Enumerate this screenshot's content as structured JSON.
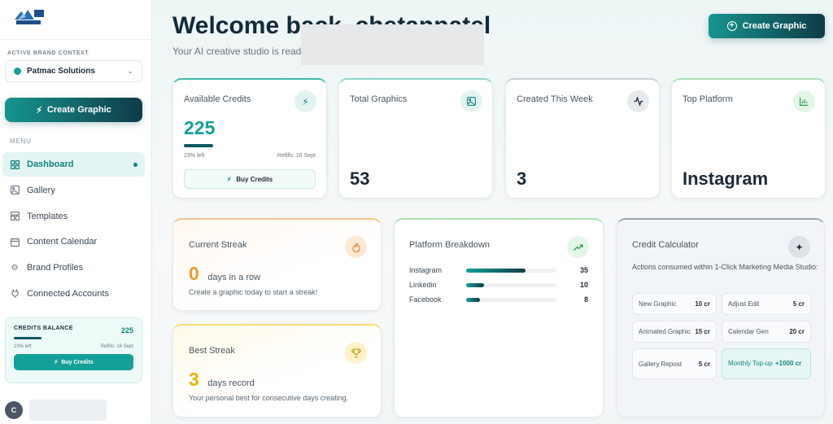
{
  "sidebar": {
    "context_label": "ACTIVE BRAND CONTEXT",
    "brand_name": "Patmac Solutions",
    "create_label": "Create Graphic",
    "menu_label": "MENU",
    "items": [
      {
        "label": "Dashboard",
        "icon": "dashboard-icon"
      },
      {
        "label": "Gallery",
        "icon": "image-icon"
      },
      {
        "label": "Templates",
        "icon": "templates-icon"
      },
      {
        "label": "Content Calendar",
        "icon": "calendar-icon"
      },
      {
        "label": "Brand Profiles",
        "icon": "gear-icon"
      },
      {
        "label": "Connected Accounts",
        "icon": "plug-icon"
      }
    ],
    "credits": {
      "title": "CREDITS BALANCE",
      "value": "225",
      "left": "23% left",
      "refills": "Refills: 16 Sept",
      "buy_label": "Buy Credits"
    },
    "user": {
      "initial": "C"
    }
  },
  "header": {
    "welcome": "Welcome back, chetanpatel",
    "subtitle": "Your AI creative studio is ready",
    "create_label": "Create Graphic"
  },
  "stats": {
    "available": {
      "title": "Available Credits",
      "value": "225",
      "progress_fraction": 0.23,
      "left": "23% left",
      "refills": "Refills: 16 Sept",
      "buy_label": "Buy Credits"
    },
    "total": {
      "title": "Total Graphics",
      "value": "53"
    },
    "week": {
      "title": "Created This Week",
      "value": "3"
    },
    "platform": {
      "title": "Top Platform",
      "value": "Instagram"
    }
  },
  "streak": {
    "current": {
      "title": "Current Streak",
      "value": "0",
      "unit": "days in a row",
      "desc": "Create a graphic today to start a streak!"
    },
    "best": {
      "title": "Best Streak",
      "value": "3",
      "unit": "days record",
      "desc": "Your personal best for consecutive days creating."
    }
  },
  "platform_breakdown": {
    "title": "Platform Breakdown",
    "rows": [
      {
        "name": "Instagram",
        "count": "35",
        "fraction": 0.66
      },
      {
        "name": "Linkedin",
        "count": "10",
        "fraction": 0.2
      },
      {
        "name": "Facebook",
        "count": "8",
        "fraction": 0.15
      }
    ]
  },
  "credit_calculator": {
    "title": "Credit Calculator",
    "desc": "Actions consumed within 1-Click Marketing Media Studio:",
    "items": [
      {
        "label": "New Graphic",
        "value": "10 cr"
      },
      {
        "label": "Adjust Edit",
        "value": "5 cr"
      },
      {
        "label": "Animated Graphic",
        "value": "15 cr"
      },
      {
        "label": "Calendar Gen",
        "value": "20 cr"
      },
      {
        "label": "Gallery Repost",
        "value": "5 cr"
      },
      {
        "label": "Monthly Top-up",
        "value": "+1000 cr"
      }
    ]
  },
  "colors": {
    "accent": "#14a098",
    "dark": "#0f3b47",
    "streak": "#f29a2e",
    "best": "#e8b30c"
  }
}
